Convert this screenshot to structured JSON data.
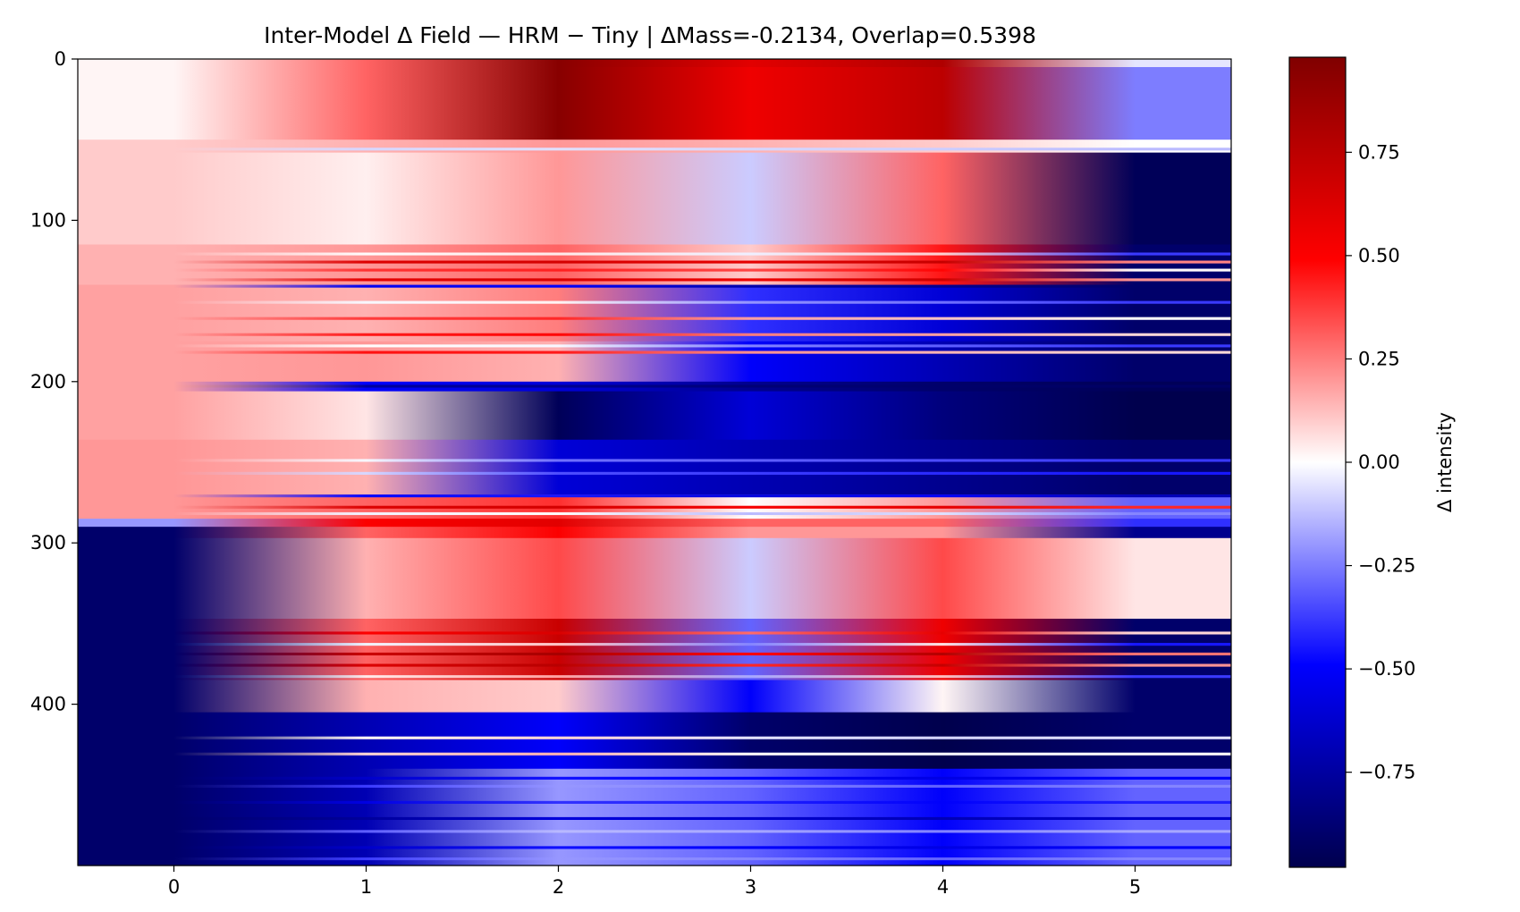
{
  "chart_data": {
    "type": "heatmap",
    "title": "Inter-Model Δ Field — HRM − Tiny | ΔMass=-0.2134, Overlap=0.5398",
    "xlabel": "",
    "ylabel": "",
    "xlim": [
      -0.5,
      5.5
    ],
    "ylim": [
      500,
      0
    ],
    "x_ticks": [
      "0",
      "1",
      "2",
      "3",
      "4",
      "5"
    ],
    "y_ticks": [
      "0",
      "100",
      "200",
      "300",
      "400"
    ],
    "x_tick_values": [
      0,
      1,
      2,
      3,
      4,
      5
    ],
    "y_tick_values": [
      0,
      100,
      200,
      300,
      400
    ],
    "grid": false,
    "interpolation": "smooth",
    "colormap": "seismic",
    "colormap_stops": [
      "#00004d",
      "#0000ff",
      "#ffffff",
      "#ff0000",
      "#800000"
    ],
    "colorbar": {
      "label": "Δ intensity",
      "range": [
        -0.98,
        0.98
      ],
      "ticks": [
        "0.75",
        "0.50",
        "0.25",
        "0.00",
        "−0.25",
        "−0.50",
        "−0.75"
      ],
      "tick_values": [
        0.75,
        0.5,
        0.25,
        0.0,
        -0.25,
        -0.5,
        -0.75
      ],
      "placement": "right"
    },
    "x_columns": [
      0,
      1,
      2,
      3,
      4,
      5
    ],
    "row_bands": [
      {
        "from": 0,
        "to": 5,
        "values": [
          0.02,
          0.3,
          0.95,
          0.6,
          0.8,
          -0.05
        ]
      },
      {
        "from": 5,
        "to": 50,
        "values": [
          0.02,
          0.3,
          0.95,
          0.55,
          0.75,
          -0.25
        ]
      },
      {
        "from": 50,
        "to": 58,
        "values": [
          0.1,
          0.15,
          0.2,
          0.15,
          0.1,
          0.0
        ]
      },
      {
        "from": 58,
        "to": 115,
        "values": [
          0.1,
          0.03,
          0.2,
          -0.1,
          0.3,
          -0.95
        ]
      },
      {
        "from": 115,
        "to": 140,
        "values": [
          0.15,
          0.2,
          0.3,
          0.1,
          0.45,
          -0.9
        ]
      },
      {
        "from": 140,
        "to": 175,
        "values": [
          0.18,
          0.15,
          0.25,
          -0.4,
          -0.6,
          -0.9
        ]
      },
      {
        "from": 175,
        "to": 200,
        "values": [
          0.18,
          0.2,
          0.15,
          -0.5,
          -0.7,
          -0.9
        ]
      },
      {
        "from": 200,
        "to": 206,
        "values": [
          0.18,
          -0.5,
          -0.6,
          -0.8,
          -0.9,
          -0.95
        ]
      },
      {
        "from": 206,
        "to": 236,
        "values": [
          0.18,
          0.05,
          -0.95,
          -0.6,
          -0.85,
          -0.98
        ]
      },
      {
        "from": 236,
        "to": 270,
        "values": [
          0.2,
          0.15,
          -0.6,
          -0.7,
          -0.8,
          -0.9
        ]
      },
      {
        "from": 270,
        "to": 285,
        "values": [
          0.2,
          0.3,
          0.4,
          0.0,
          0.2,
          -0.3
        ]
      },
      {
        "from": 285,
        "to": 290,
        "values": [
          -0.2,
          0.5,
          0.6,
          0.3,
          0.3,
          -0.4
        ]
      },
      {
        "from": 290,
        "to": 297,
        "values": [
          -0.9,
          0.3,
          0.5,
          0.2,
          0.2,
          -0.8
        ]
      },
      {
        "from": 297,
        "to": 347,
        "values": [
          -0.9,
          0.15,
          0.35,
          -0.1,
          0.35,
          0.05
        ]
      },
      {
        "from": 347,
        "to": 385,
        "values": [
          -0.9,
          0.3,
          0.7,
          -0.3,
          0.55,
          -0.9
        ]
      },
      {
        "from": 385,
        "to": 405,
        "values": [
          -0.9,
          0.15,
          0.1,
          -0.5,
          0.02,
          -0.9
        ]
      },
      {
        "from": 405,
        "to": 440,
        "values": [
          -0.9,
          -0.7,
          -0.5,
          -0.9,
          -0.98,
          -0.9
        ]
      },
      {
        "from": 440,
        "to": 500,
        "values": [
          -0.9,
          -0.7,
          -0.2,
          -0.3,
          -0.5,
          -0.3
        ]
      }
    ],
    "stripes": [
      {
        "row": 55,
        "value": -0.2
      },
      {
        "row": 120,
        "value": -0.1
      },
      {
        "row": 125,
        "value": 0.85
      },
      {
        "row": 130,
        "value": 0.5
      },
      {
        "row": 136,
        "value": 0.8
      },
      {
        "row": 140,
        "value": -0.9
      },
      {
        "row": 150,
        "value": -0.1
      },
      {
        "row": 160,
        "value": 0.5
      },
      {
        "row": 170,
        "value": 0.6
      },
      {
        "row": 177,
        "value": -0.1
      },
      {
        "row": 181,
        "value": 0.6
      },
      {
        "row": 202,
        "value": -0.9
      },
      {
        "row": 248,
        "value": -0.1
      },
      {
        "row": 256,
        "value": -0.2
      },
      {
        "row": 270,
        "value": -0.9
      },
      {
        "row": 277,
        "value": 0.8
      },
      {
        "row": 281,
        "value": -0.2
      },
      {
        "row": 355,
        "value": 0.6
      },
      {
        "row": 362,
        "value": -0.2
      },
      {
        "row": 368,
        "value": 0.9
      },
      {
        "row": 375,
        "value": 0.8
      },
      {
        "row": 382,
        "value": -0.1
      },
      {
        "row": 420,
        "value": 0.4
      },
      {
        "row": 430,
        "value": 0.5
      },
      {
        "row": 445,
        "value": -0.6
      },
      {
        "row": 450,
        "value": -0.2
      },
      {
        "row": 460,
        "value": -0.5
      },
      {
        "row": 470,
        "value": -0.8
      },
      {
        "row": 478,
        "value": -0.1
      },
      {
        "row": 488,
        "value": -0.6
      },
      {
        "row": 495,
        "value": -0.2
      }
    ]
  }
}
